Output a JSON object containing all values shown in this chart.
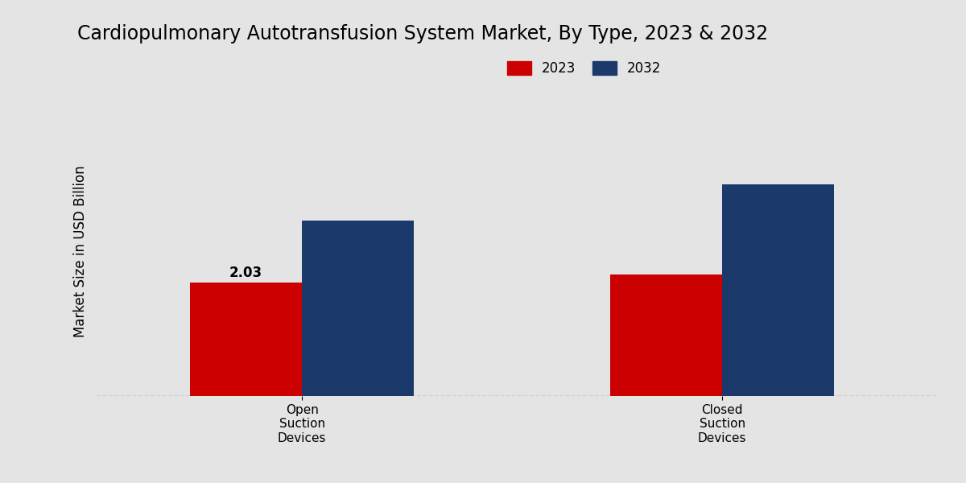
{
  "title": "Cardiopulmonary Autotransfusion System Market, By Type, 2023 & 2032",
  "ylabel": "Market Size in USD Billion",
  "categories": [
    "Open\nSuction\nDevices",
    "Closed\nSuction\nDevices"
  ],
  "series": {
    "2023": [
      2.03,
      2.18
    ],
    "2032": [
      3.15,
      3.8
    ]
  },
  "bar_colors": {
    "2023": "#cc0000",
    "2032": "#1b3a6b"
  },
  "annotation": {
    "text": "2.03",
    "bar": 0,
    "series": "2023"
  },
  "bar_width": 0.12,
  "ylim": [
    0,
    5.2
  ],
  "background_color": "#e4e4e4",
  "title_fontsize": 17,
  "ylabel_fontsize": 12,
  "tick_fontsize": 11,
  "legend_fontsize": 12,
  "annotation_fontsize": 12,
  "group_centers": [
    0.3,
    0.75
  ]
}
